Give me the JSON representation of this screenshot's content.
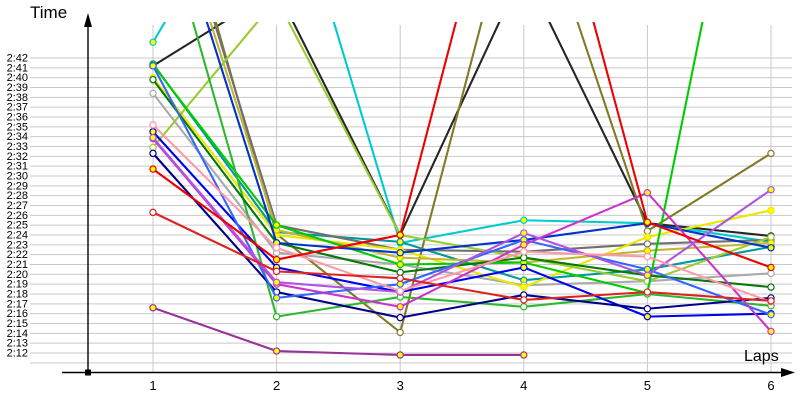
{
  "chart_data": {
    "type": "line",
    "title": "",
    "xlabel": "Laps",
    "ylabel": "Time",
    "legend": "none",
    "grid": true,
    "x": [
      1,
      2,
      3,
      4,
      5,
      6
    ],
    "x_tick_labels": [
      "1",
      "2",
      "3",
      "4",
      "5",
      "6"
    ],
    "y_tick_labels": [
      "2:42",
      "2:41",
      "2:40",
      "2:39",
      "2:38",
      "2:37",
      "2:36",
      "2:35",
      "2:34",
      "2:33",
      "2:32",
      "2:31",
      "2:30",
      "2:29",
      "2:28",
      "2:27",
      "2:26",
      "2:25",
      "2:24",
      "2:23",
      "2:22",
      "2:21",
      "2:20",
      "2:19",
      "2:18",
      "2:17",
      "2:16",
      "2:15",
      "2:14",
      "2:13",
      "2:12"
    ],
    "y_unit": "minutes:seconds",
    "y_axis_top_seconds": 162,
    "y_axis_bottom_seconds": 131,
    "note": "lap_times_seconds are seconds past 2:00; values above 167 are off-chart spikes (clipped at plot top); null = no lap recorded",
    "marker_fills": {
      "yellow": "#FFFF00",
      "white": "#FFFFFF"
    },
    "series": [
      {
        "name": "turquoise",
        "color": "#00CCCC",
        "marker_fill": "yellow",
        "lap_times_seconds": [
          163.6,
          185,
          143.2,
          145.5,
          145.2,
          143.3
        ]
      },
      {
        "name": "teal",
        "color": "#009999",
        "marker_fill": "yellow",
        "lap_times_seconds": [
          161.4,
          144.3,
          143.3,
          139.4,
          140.5,
          142.8
        ]
      },
      {
        "name": "black",
        "color": "#262626",
        "marker_fill": "white",
        "lap_times_seconds": [
          161.2,
          169,
          144.0,
          171,
          145.2,
          143.9
        ]
      },
      {
        "name": "olive",
        "color": "#837A26",
        "marker_fill": "white",
        "lap_times_seconds": [
          188,
          144.1,
          134.1,
          182,
          144.4,
          152.3
        ]
      },
      {
        "name": "light-gray",
        "color": "#AAAAAA",
        "marker_fill": "white",
        "lap_times_seconds": [
          158.4,
          142.2,
          141.0,
          138.9,
          139.3,
          140.1
        ]
      },
      {
        "name": "dark-gray",
        "color": "#707070",
        "marker_fill": "white",
        "lap_times_seconds": [
          186,
          145.0,
          142.5,
          142.3,
          143.1,
          143.5
        ]
      },
      {
        "name": "yellow",
        "color": "#E8E800",
        "marker_fill": "yellow",
        "lap_times_seconds": [
          160.0,
          144.0,
          142.5,
          138.7,
          143.8,
          146.5
        ]
      },
      {
        "name": "khaki",
        "color": "#C2B632",
        "marker_fill": "yellow",
        "lap_times_seconds": [
          184,
          144.5,
          141.7,
          141.2,
          142.4,
          143.2
        ]
      },
      {
        "name": "yellow-green",
        "color": "#99CC33",
        "marker_fill": "white",
        "lap_times_seconds": [
          152.9,
          168,
          144.0,
          141.7,
          139.3,
          143.8
        ]
      },
      {
        "name": "bright-green",
        "color": "#00CC00",
        "marker_fill": "yellow",
        "lap_times_seconds": [
          161.3,
          145.0,
          141.0,
          141.2,
          138.1,
          200
        ]
      },
      {
        "name": "medium-green",
        "color": "#2EB82E",
        "marker_fill": "white",
        "lap_times_seconds": [
          180,
          135.7,
          137.7,
          136.7,
          138.0,
          136.8
        ]
      },
      {
        "name": "dark-green",
        "color": "#067806",
        "marker_fill": "white",
        "lap_times_seconds": [
          159.8,
          143.2,
          140.2,
          141.7,
          139.9,
          138.7
        ]
      },
      {
        "name": "royal-blue",
        "color": "#0033CC",
        "marker_fill": "yellow",
        "lap_times_seconds": [
          183,
          143.2,
          142.2,
          143.5,
          145.2,
          142.7
        ]
      },
      {
        "name": "blue",
        "color": "#0000EE",
        "marker_fill": "yellow",
        "lap_times_seconds": [
          154.5,
          140.7,
          138.2,
          140.7,
          135.7,
          136.0
        ]
      },
      {
        "name": "navy",
        "color": "#000088",
        "marker_fill": "white",
        "lap_times_seconds": [
          152.3,
          138.2,
          135.6,
          137.9,
          136.5,
          137.6
        ]
      },
      {
        "name": "cornflower",
        "color": "#3366FF",
        "marker_fill": "yellow",
        "lap_times_seconds": [
          161.2,
          137.6,
          139.0,
          143.5,
          140.5,
          135.9
        ]
      },
      {
        "name": "magenta",
        "color": "#CC33CC",
        "marker_fill": "yellow",
        "lap_times_seconds": [
          153.8,
          139.0,
          136.7,
          143.0,
          148.3,
          134.2
        ]
      },
      {
        "name": "orchid",
        "color": "#B055E0",
        "marker_fill": "yellow",
        "lap_times_seconds": [
          153.9,
          139.2,
          138.2,
          144.2,
          139.9,
          148.6
        ]
      },
      {
        "name": "pink",
        "color": "#FF99AA",
        "marker_fill": "white",
        "lap_times_seconds": [
          155.2,
          142.7,
          138.3,
          142.3,
          141.8,
          137.2
        ]
      },
      {
        "name": "red",
        "color": "#EE0000",
        "marker_fill": "yellow",
        "lap_times_seconds": [
          150.7,
          141.5,
          144.0,
          192,
          145.3,
          140.7
        ]
      },
      {
        "name": "red-2",
        "color": "#DD2222",
        "marker_fill": "white",
        "lap_times_seconds": [
          146.3,
          140.3,
          139.6,
          137.4,
          138.2,
          137.3
        ]
      },
      {
        "name": "purple",
        "color": "#993399",
        "marker_fill": "yellow",
        "lap_times_seconds": [
          136.6,
          132.2,
          131.8,
          131.8,
          null,
          null
        ]
      }
    ]
  },
  "layout_colors": {
    "background": "#FFFFFF",
    "gridline": "#C9C9C9",
    "axis": "#000000",
    "tick_text": "#000000"
  }
}
